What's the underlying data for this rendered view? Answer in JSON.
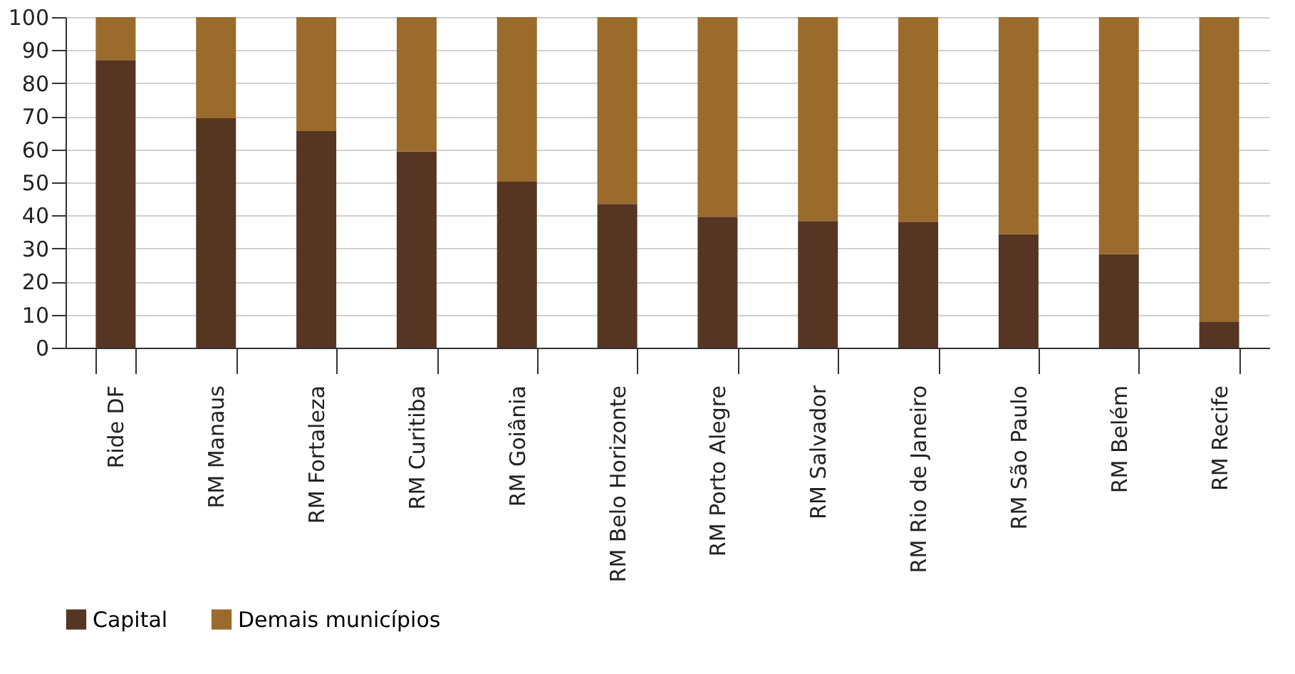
{
  "chart_data": {
    "type": "bar",
    "stacked": true,
    "categories": [
      "Ride DF",
      "RM Manaus",
      "RM Fortaleza",
      "RM Curitiba",
      "RM Goiânia",
      "RM Belo Horizonte",
      "RM Porto Alegre",
      "RM Salvador",
      "RM Rio de Janeiro",
      "RM São Paulo",
      "RM Belém",
      "RM Recife"
    ],
    "series": [
      {
        "name": "Capital",
        "color": "#563522",
        "values": [
          87,
          69.4,
          65.5,
          59.4,
          50.2,
          43.5,
          39.6,
          38.3,
          38.1,
          34.4,
          28.3,
          7.9
        ]
      },
      {
        "name": "Demais municípios",
        "color": "#9b6b2c",
        "values": [
          13,
          30.6,
          34.5,
          40.6,
          49.8,
          56.5,
          60.4,
          61.7,
          61.9,
          65.6,
          71.7,
          92.1
        ]
      }
    ],
    "ylim": [
      0,
      100
    ],
    "yticks": [
      0,
      10,
      20,
      30,
      40,
      50,
      60,
      70,
      80,
      90,
      100
    ],
    "grid": "y",
    "legend": "bottom"
  }
}
